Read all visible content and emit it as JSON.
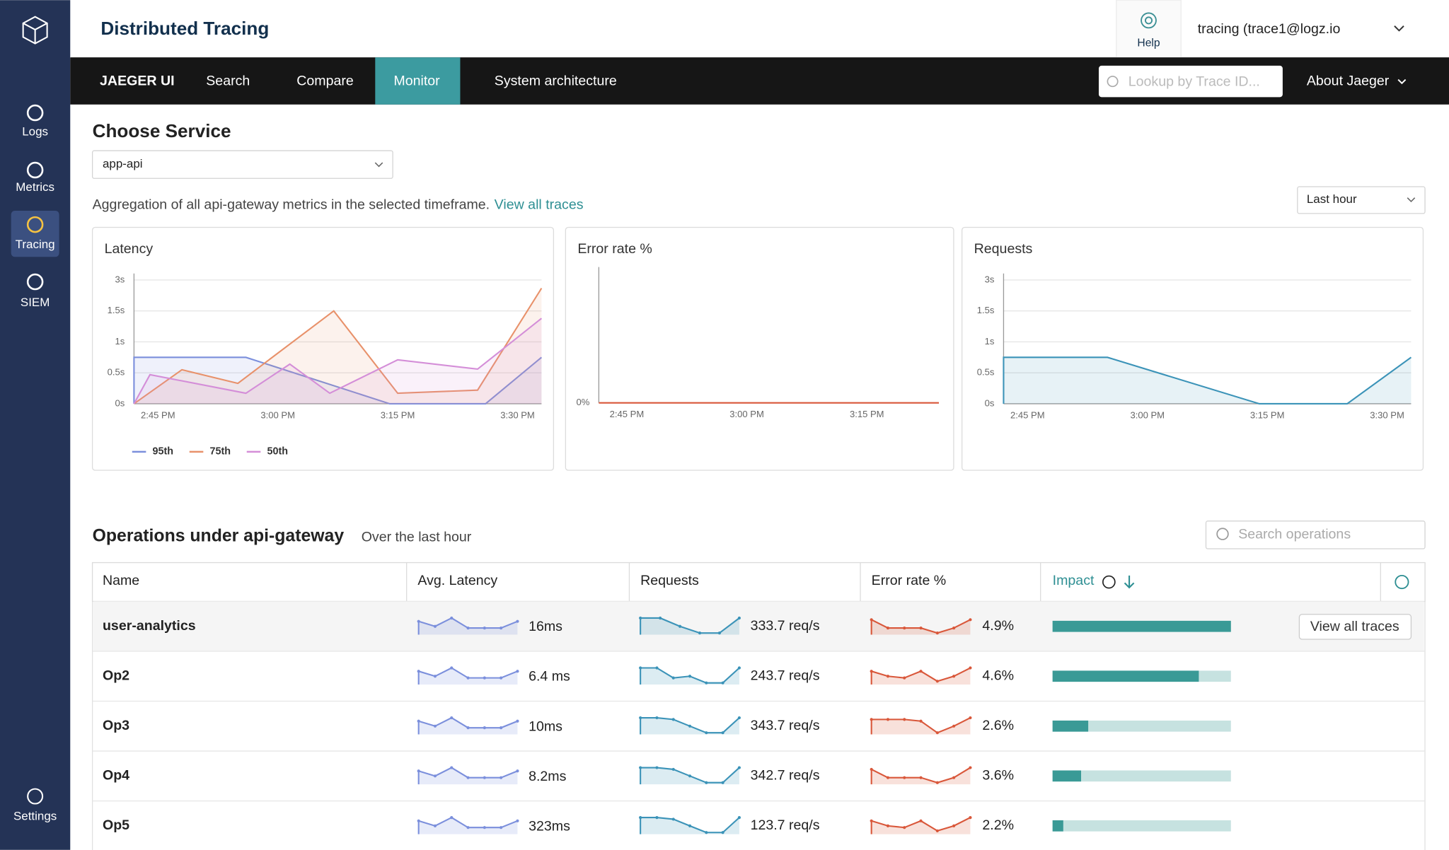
{
  "sidebar": {
    "items": [
      "Logs",
      "Metrics",
      "Tracing",
      "SIEM"
    ],
    "settings": "Settings"
  },
  "header": {
    "title": "Distributed Tracing",
    "help": "Help",
    "user": "tracing (trace1@logz.io"
  },
  "nav": {
    "brand": "JAEGER UI",
    "items": [
      "Search",
      "Compare",
      "Monitor",
      "System architecture"
    ],
    "search_placeholder": "Lookup by Trace ID...",
    "about": "About Jaeger"
  },
  "service": {
    "heading": "Choose Service",
    "selected": "app-api",
    "description": "Aggregation of all api-gateway metrics in the selected timeframe.",
    "link": "View all traces",
    "timeframe": "Last hour"
  },
  "charts": [
    {
      "type": "line",
      "title": "Latency",
      "xlim": [
        42,
        93
      ],
      "xticks": [
        {
          "value": 45,
          "label": "2:45 PM"
        },
        {
          "value": 60,
          "label": "3:00 PM"
        },
        {
          "value": 75,
          "label": "3:15 PM"
        },
        {
          "value": 90,
          "label": "3:30 PM"
        }
      ],
      "ylim": [
        0,
        3
      ],
      "yticks": [
        {
          "value": 0,
          "label": "0s"
        },
        {
          "value": 0.5,
          "label": "0.5s"
        },
        {
          "value": 1,
          "label": "1s"
        },
        {
          "value": 1.5,
          "label": "1.5s"
        },
        {
          "value": 3,
          "label": "3s"
        }
      ],
      "series": [
        {
          "name": "95th",
          "color": "#7b8fdc",
          "x": [
            42,
            42,
            56,
            74,
            86,
            93
          ],
          "values": [
            0,
            0.75,
            0.75,
            0,
            0,
            0.75
          ]
        },
        {
          "name": "75th",
          "color": "#e8916a",
          "x": [
            42,
            48,
            55,
            67,
            75,
            85,
            93
          ],
          "values": [
            0,
            0.55,
            0.33,
            1.5,
            0.17,
            0.22,
            2.6
          ]
        },
        {
          "name": "50th",
          "color": "#d48ed8",
          "x": [
            42,
            44,
            56,
            61.5,
            66.5,
            75,
            85,
            93
          ],
          "values": [
            0,
            0.47,
            0.17,
            0.64,
            0.17,
            0.71,
            0.56,
            1.38
          ]
        }
      ]
    },
    {
      "type": "line",
      "title": "Error rate %",
      "xlim": [
        41.5,
        84
      ],
      "xticks": [
        {
          "value": 45,
          "label": "2:45 PM"
        },
        {
          "value": 60,
          "label": "3:00 PM"
        },
        {
          "value": 75,
          "label": "3:15 PM"
        }
      ],
      "ylim": [
        0,
        1
      ],
      "yticks": [
        {
          "value": 0,
          "label": "0%"
        }
      ],
      "series": [
        {
          "color": "#d9573a",
          "x": [
            41.5,
            84
          ],
          "values": [
            0,
            0
          ]
        }
      ]
    },
    {
      "type": "line",
      "title": "Requests",
      "xlim": [
        42,
        93
      ],
      "xticks": [
        {
          "value": 45,
          "label": "2:45 PM"
        },
        {
          "value": 60,
          "label": "3:00 PM"
        },
        {
          "value": 75,
          "label": "3:15 PM"
        },
        {
          "value": 90,
          "label": "3:30 PM"
        }
      ],
      "ylim": [
        0,
        3
      ],
      "yticks": [
        {
          "value": 0,
          "label": "0s"
        },
        {
          "value": 0.5,
          "label": "0.5s"
        },
        {
          "value": 1,
          "label": "1s"
        },
        {
          "value": 1.5,
          "label": "1.5s"
        },
        {
          "value": 3,
          "label": "3s"
        }
      ],
      "series": [
        {
          "color": "#3b93b8",
          "x": [
            42,
            42,
            55,
            74,
            85,
            93
          ],
          "values": [
            0,
            0.75,
            0.75,
            0,
            0,
            0.75
          ]
        }
      ]
    }
  ],
  "operations": {
    "heading": "Operations under api-gateway",
    "subheading": "Over the last hour",
    "search_placeholder": "Search operations",
    "columns": [
      "Name",
      "Avg. Latency",
      "Requests",
      "Error rate %",
      "Impact"
    ],
    "button": "View all traces",
    "rows": [
      {
        "name": "user-analytics",
        "latency": "16ms",
        "requests": "333.7 req/s",
        "error_rate": "4.9%",
        "impact": 1.0,
        "latency_trend": [
          8,
          5,
          10,
          4,
          4,
          4,
          8
        ],
        "requests_trend": [
          10,
          10,
          5,
          1,
          1,
          10
        ],
        "error_trend": [
          9,
          4,
          4,
          4,
          1,
          4,
          9
        ]
      },
      {
        "name": "Op2",
        "latency": "6.4 ms",
        "requests": "243.7 req/s",
        "error_rate": "4.6%",
        "impact": 0.82,
        "latency_trend": [
          8,
          5,
          10,
          4,
          4,
          4,
          8
        ],
        "requests_trend": [
          10,
          10,
          4,
          5,
          1,
          1,
          10
        ],
        "error_trend": [
          8,
          5,
          4,
          8,
          2,
          5,
          10
        ]
      },
      {
        "name": "Op3",
        "latency": "10ms",
        "requests": "343.7 req/s",
        "error_rate": "2.6%",
        "impact": 0.2,
        "latency_trend": [
          8,
          5,
          10,
          4,
          4,
          4,
          8
        ],
        "requests_trend": [
          10,
          10,
          9,
          5,
          1,
          1,
          10
        ],
        "error_trend": [
          9,
          9,
          9,
          8,
          1,
          5,
          10
        ]
      },
      {
        "name": "Op4",
        "latency": "8.2ms",
        "requests": "342.7 req/s",
        "error_rate": "3.6%",
        "impact": 0.16,
        "latency_trend": [
          8,
          5,
          10,
          4,
          4,
          4,
          8
        ],
        "requests_trend": [
          10,
          10,
          9,
          5,
          1,
          1,
          10
        ],
        "error_trend": [
          9,
          4,
          4,
          4,
          1,
          4,
          10
        ]
      },
      {
        "name": "Op5",
        "latency": "323ms",
        "requests": "123.7 req/s",
        "error_rate": "2.2%",
        "impact": 0.06,
        "latency_trend": [
          8,
          5,
          10,
          4,
          4,
          4,
          8
        ],
        "requests_trend": [
          10,
          10,
          9,
          5,
          1,
          1,
          10
        ],
        "error_trend": [
          8,
          5,
          4,
          8,
          2,
          5,
          10
        ]
      }
    ]
  }
}
